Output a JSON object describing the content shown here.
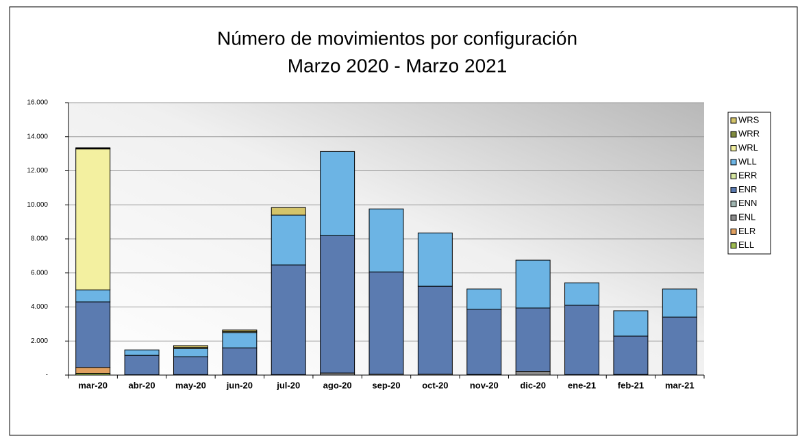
{
  "chart_data": {
    "type": "stacked_bar",
    "title": "Número de movimientos por configuración",
    "subtitle": "Marzo 2020 - Marzo 2021",
    "categories": [
      "mar-20",
      "abr-20",
      "may-20",
      "jun-20",
      "jul-20",
      "ago-20",
      "sep-20",
      "oct-20",
      "nov-20",
      "dic-20",
      "ene-21",
      "feb-21",
      "mar-21"
    ],
    "series": [
      {
        "name": "ELL",
        "color": "#9dbb50",
        "values": [
          100,
          0,
          0,
          0,
          0,
          0,
          0,
          0,
          0,
          0,
          0,
          0,
          0
        ]
      },
      {
        "name": "ELR",
        "color": "#e0a060",
        "values": [
          350,
          0,
          0,
          0,
          0,
          0,
          0,
          0,
          0,
          0,
          0,
          0,
          0
        ]
      },
      {
        "name": "ENL",
        "color": "#8c8c8c",
        "values": [
          0,
          20,
          30,
          30,
          30,
          120,
          60,
          60,
          40,
          220,
          30,
          40,
          20
        ]
      },
      {
        "name": "ENN",
        "color": "#9fb5b0",
        "values": [
          0,
          0,
          0,
          0,
          0,
          0,
          0,
          0,
          0,
          0,
          0,
          0,
          0
        ]
      },
      {
        "name": "ENR",
        "color": "#5b7bb0",
        "values": [
          3850,
          1140,
          1050,
          1570,
          6440,
          8070,
          6000,
          5160,
          3820,
          3720,
          4070,
          2250,
          3390
        ]
      },
      {
        "name": "ERR",
        "color": "#d5e6a0",
        "values": [
          0,
          0,
          0,
          0,
          0,
          0,
          0,
          0,
          0,
          0,
          0,
          0,
          0
        ]
      },
      {
        "name": "WLL",
        "color": "#6cb4e4",
        "values": [
          700,
          320,
          480,
          900,
          2930,
          4940,
          3700,
          3130,
          1200,
          2810,
          1320,
          1490,
          1650
        ]
      },
      {
        "name": "WRL",
        "color": "#f3f0a0",
        "values": [
          8280,
          0,
          60,
          50,
          0,
          0,
          0,
          0,
          0,
          0,
          0,
          0,
          0
        ]
      },
      {
        "name": "WRR",
        "color": "#7f8a3e",
        "values": [
          30,
          0,
          0,
          0,
          0,
          0,
          0,
          0,
          0,
          0,
          0,
          0,
          0
        ]
      },
      {
        "name": "WRS",
        "color": "#d4c46a",
        "values": [
          40,
          0,
          110,
          100,
          440,
          0,
          0,
          0,
          0,
          0,
          0,
          0,
          0
        ]
      }
    ],
    "ylim": [
      0,
      16000
    ],
    "yticks": [
      {
        "value": 0,
        "label": "-"
      },
      {
        "value": 2000,
        "label": "2.000"
      },
      {
        "value": 4000,
        "label": "4.000"
      },
      {
        "value": 6000,
        "label": "6.000"
      },
      {
        "value": 8000,
        "label": "8.000"
      },
      {
        "value": 10000,
        "label": "10.000"
      },
      {
        "value": 12000,
        "label": "12.000"
      },
      {
        "value": 14000,
        "label": "14.000"
      },
      {
        "value": 16000,
        "label": "16.000"
      }
    ],
    "grid": true,
    "legend": "right"
  }
}
